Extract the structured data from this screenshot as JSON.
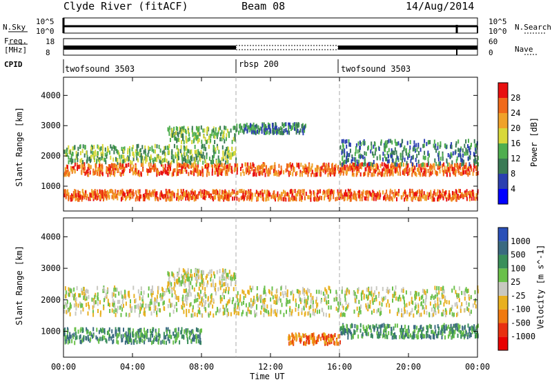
{
  "header": {
    "station": "Clyde River (fitACF)",
    "beam": "Beam 08",
    "date": "14/Aug/2014"
  },
  "top_panels": {
    "nsky_label": "N.Sky",
    "nsky_hi": "10^5",
    "nsky_lo": "10^0",
    "nsearch_label": "N.Search",
    "nsearch_hi": "10^5",
    "nsearch_lo": "10^0",
    "freq_label_1": "Freq.",
    "freq_label_2": "[MHz]",
    "freq_hi": "18",
    "freq_lo": "8",
    "nave_label": "Nave",
    "nave_hi": "60",
    "nave_lo": "0",
    "cpid_label": "CPID",
    "cpid_segments": [
      {
        "name": "twofsound 3503",
        "start_hour": 0,
        "end_hour": 10
      },
      {
        "name": "rbsp 200",
        "start_hour": 10,
        "end_hour": 16
      },
      {
        "name": "twofsound 3503",
        "start_hour": 16,
        "end_hour": 24
      }
    ]
  },
  "chart_data": [
    {
      "type": "heatmap",
      "title": "",
      "xlabel": "Time UT",
      "ylabel": "Slant Range [km]",
      "x_range_hours": [
        0,
        24
      ],
      "y_range_km": [
        180,
        4600
      ],
      "y_ticks": [
        1000,
        2000,
        3000,
        4000
      ],
      "colorbar_label": "Power [dB]",
      "colorbar_ticks": [
        "4",
        "8",
        "12",
        "16",
        "20",
        "24",
        "28"
      ],
      "colorbar_colors": [
        "#0000ff",
        "#2b3fb0",
        "#3a7a55",
        "#4fae4f",
        "#d8d83a",
        "#f0a22a",
        "#f06a1a",
        "#e81010"
      ],
      "scatter_bands": [
        {
          "hours": [
            0,
            24
          ],
          "km_center": 1550,
          "km_halfwidth": 180,
          "level": 6
        },
        {
          "hours": [
            0,
            10
          ],
          "km_center": 2050,
          "km_halfwidth": 280,
          "level": 3
        },
        {
          "hours": [
            0,
            24
          ],
          "km_center": 700,
          "km_halfwidth": 150,
          "level": 6
        },
        {
          "hours": [
            6,
            10
          ],
          "km_center": 2700,
          "km_halfwidth": 250,
          "level": 3
        },
        {
          "hours": [
            10,
            14
          ],
          "km_center": 2900,
          "km_halfwidth": 150,
          "level": 2
        },
        {
          "hours": [
            16,
            24
          ],
          "km_center": 2100,
          "km_halfwidth": 400,
          "level": 2
        }
      ]
    },
    {
      "type": "heatmap",
      "title": "",
      "xlabel": "Time UT",
      "ylabel": "Slant Range [km]",
      "x_range_hours": [
        0,
        24
      ],
      "x_ticks": [
        "00:00",
        "04:00",
        "08:00",
        "12:00",
        "16:00",
        "20:00",
        "00:00"
      ],
      "y_range_km": [
        180,
        4600
      ],
      "y_ticks": [
        1000,
        2000,
        3000,
        4000
      ],
      "colorbar_label": "Velocity [m s^-1]",
      "colorbar_ticks": [
        "1000",
        "500",
        "100",
        "25",
        "-25",
        "-100",
        "-500",
        "-1000"
      ],
      "colorbar_colors": [
        "#2a50b8",
        "#3a6a80",
        "#3a8f5a",
        "#6ac04a",
        "#c8c8c0",
        "#e8b020",
        "#f07a10",
        "#e83010",
        "#e80000"
      ],
      "scatter_bands": [
        {
          "hours": [
            0,
            24
          ],
          "km_center": 1950,
          "km_halfwidth": 450,
          "level": 4
        },
        {
          "hours": [
            0,
            8
          ],
          "km_center": 850,
          "km_halfwidth": 220,
          "level": 2
        },
        {
          "hours": [
            13,
            16
          ],
          "km_center": 750,
          "km_halfwidth": 150,
          "level": 6
        },
        {
          "hours": [
            16,
            24
          ],
          "km_center": 1000,
          "km_halfwidth": 200,
          "level": 2
        },
        {
          "hours": [
            6,
            10
          ],
          "km_center": 2700,
          "km_halfwidth": 250,
          "level": 4
        }
      ]
    }
  ]
}
